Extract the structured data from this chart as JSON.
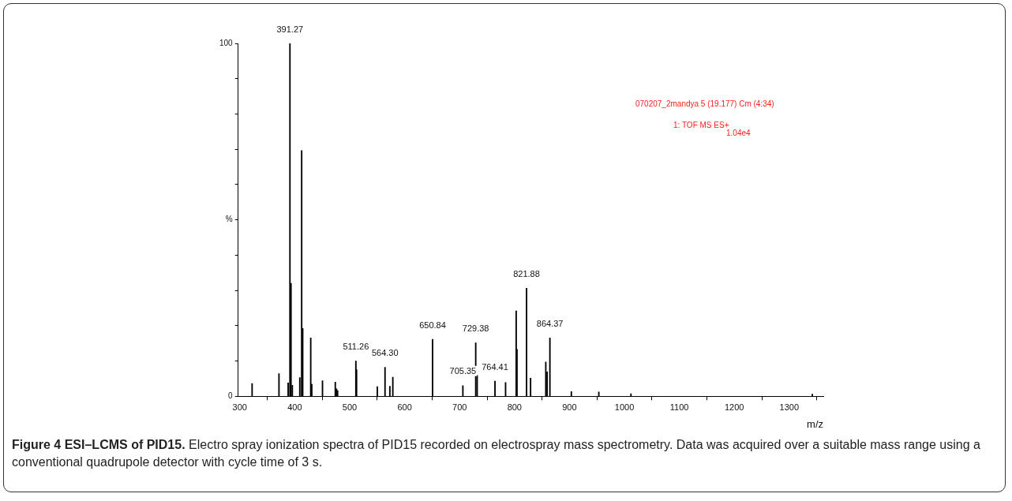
{
  "chart_data": {
    "type": "bar",
    "title": "Figure 4 ESI–LCMS of PID15.",
    "xlabel": "m/z",
    "x": [
      322.4,
      371.3,
      388,
      391.27,
      393.2,
      395.6,
      409.2,
      412.6,
      414.5,
      429.1,
      431,
      450.5,
      473.8,
      476,
      478,
      511.26,
      512.5,
      550.3,
      564.3,
      573.1,
      578.5,
      650.84,
      706,
      729.38,
      732,
      764.41,
      783.7,
      803,
      804.5,
      821.88,
      829.2,
      856.9,
      859.3,
      864.37,
      903.4,
      953.4,
      1011.9,
      1342
    ],
    "values": [
      3.6,
      6.4,
      3.8,
      100,
      32,
      3.1,
      5.3,
      69.6,
      19.2,
      16.5,
      3.4,
      4.4,
      4,
      2.1,
      1.6,
      10,
      7.5,
      2.7,
      8.2,
      2.8,
      5.4,
      16.1,
      3,
      15.1,
      5.9,
      4.3,
      3.9,
      24.2,
      13.3,
      30.6,
      5.1,
      9.7,
      6.9,
      16.5,
      1.3,
      1.2,
      0.7,
      0.6
    ],
    "color": "#000000",
    "xlim": [
      297,
      1362
    ],
    "xticks": [
      300,
      400,
      500,
      600,
      700,
      800,
      900,
      1000,
      1100,
      1200,
      1300
    ],
    "ylim": [
      0,
      100
    ],
    "yticks": [
      0,
      {
        "value": 10,
        "label": null
      },
      {
        "value": 20,
        "label": null
      },
      {
        "value": 30,
        "label": null
      },
      {
        "value": 40,
        "label": null
      },
      {
        "value": 50,
        "label": "%"
      },
      {
        "value": 60,
        "label": null
      },
      {
        "value": 70,
        "label": null
      },
      {
        "value": 80,
        "label": null
      },
      {
        "value": 90,
        "label": null
      },
      100
    ],
    "grid": false,
    "legend": false,
    "annotations": [
      {
        "text": "391.27",
        "x": 391.27,
        "y": 100
      },
      {
        "text": "511.26",
        "x": 511.26,
        "y": 10
      },
      {
        "text": "564.30",
        "x": 564.3,
        "y": 8.2
      },
      {
        "text": "650.84",
        "x": 650.84,
        "y": 16.1
      },
      {
        "text": "705.35",
        "x": 706,
        "y": 3
      },
      {
        "text": "729.38",
        "x": 729.38,
        "y": 15.1
      },
      {
        "text": "764.41",
        "x": 764.41,
        "y": 4.3
      },
      {
        "text": "821.88",
        "x": 821.88,
        "y": 30.6
      },
      {
        "text": "864.37",
        "x": 864.37,
        "y": 16.5
      },
      "070207_2mandya 5 (19.177) Cm (4:34)",
      "1: TOF MS ES+",
      "1.04e4",
      "Electro spray ionization spectra of PID15 recorded on electrospray mass spectrometry. Data was acquired over a suitable mass range using a conventional quadrupole detector with cycle time of 3 s."
    ]
  }
}
